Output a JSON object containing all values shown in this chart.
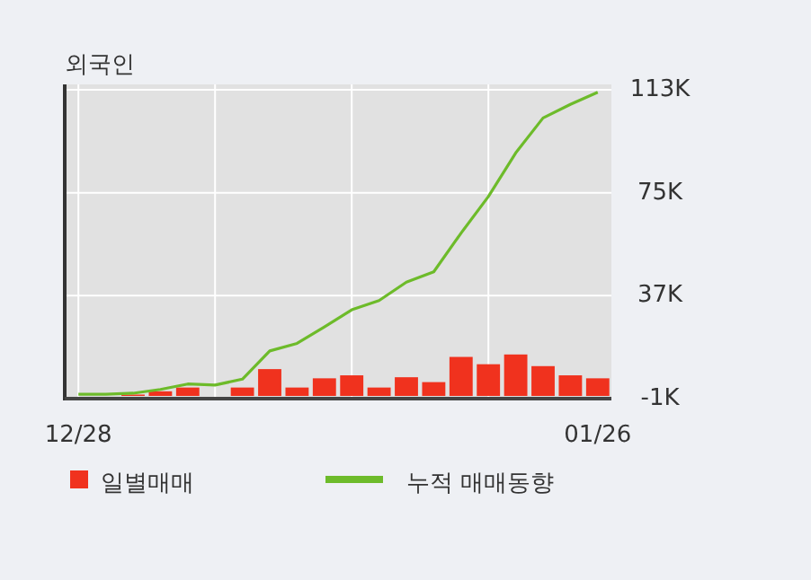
{
  "chart_data": {
    "type": "bar",
    "title": "외국인",
    "categories": [
      "12/28",
      null,
      null,
      null,
      null,
      null,
      null,
      null,
      null,
      null,
      null,
      null,
      null,
      null,
      null,
      null,
      null,
      null,
      null,
      "01/26"
    ],
    "series": [
      {
        "name": "일별매매",
        "color": "#f0321e",
        "values": [
          null,
          null,
          500,
          1700,
          3100,
          0,
          3100,
          9900,
          3100,
          6500,
          7600,
          3100,
          6900,
          5100,
          14400,
          11700,
          15300,
          11000,
          7600,
          6500
        ]
      },
      {
        "name": "누적 매매동향",
        "type": "line",
        "color": "#6dbb2a",
        "values": [
          600,
          600,
          1000,
          2400,
          4400,
          4000,
          6200,
          16600,
          19400,
          25500,
          31800,
          35200,
          42000,
          45800,
          60100,
          73600,
          89700,
          102600,
          107600,
          112100
        ]
      }
    ],
    "ylim": [
      -1000,
      113000
    ],
    "yticks": [
      {
        "value": 113000,
        "label": "113K"
      },
      {
        "value": 75000,
        "label": "75K"
      },
      {
        "value": 37000,
        "label": "37K"
      },
      {
        "value": -1000,
        "label": "-1K"
      }
    ],
    "grid": true,
    "legend": "bottom",
    "marker": "none"
  }
}
